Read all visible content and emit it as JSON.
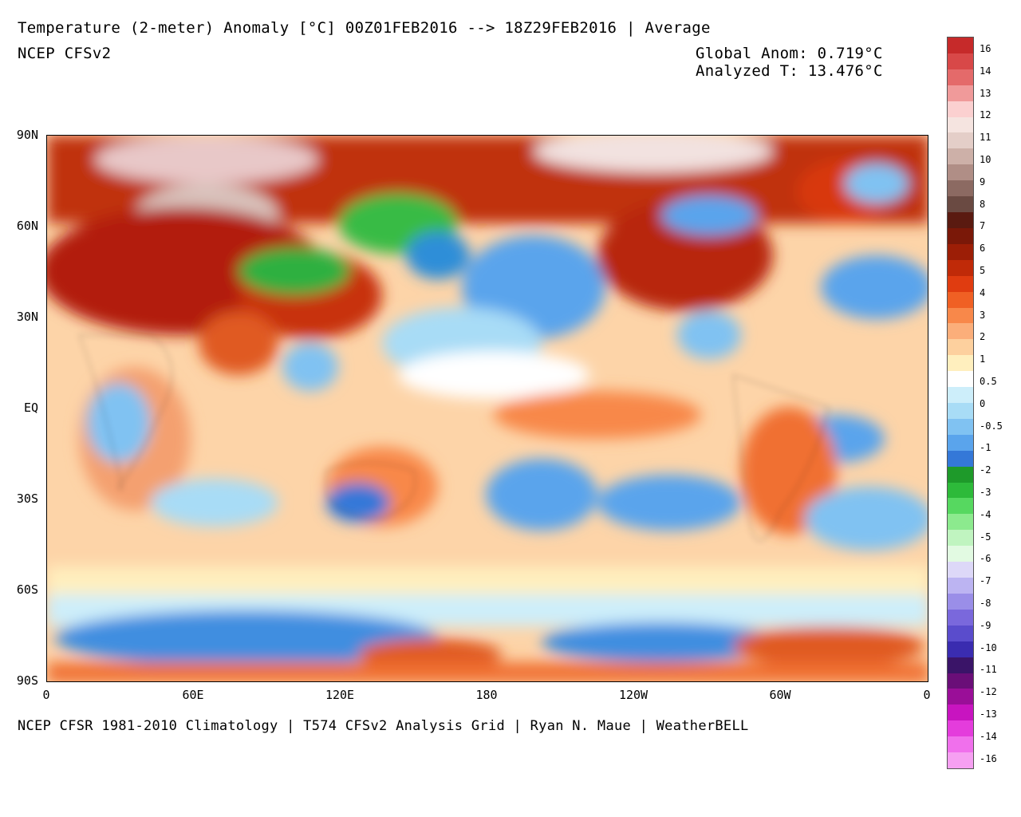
{
  "header": {
    "title": "Temperature (2-meter) Anomaly  [°C] 00Z01FEB2016 --> 18Z29FEB2016 | Average",
    "model": "NCEP CFSv2",
    "global_anom": "Global Anom: 0.719°C",
    "analyzed_t": "Analyzed T: 13.476°C"
  },
  "footer": "NCEP CFSR 1981-2010 Climatology | T574 CFSv2 Analysis Grid | Ryan N. Maue | WeatherBELL",
  "map": {
    "lat_labels": [
      "90N",
      "60N",
      "30N",
      "EQ",
      "30S",
      "60S",
      "90S"
    ],
    "lon_labels": [
      "0",
      "60E",
      "120E",
      "180",
      "120W",
      "60W",
      "0"
    ]
  },
  "colorbar": {
    "labels": [
      "16",
      "14",
      "13",
      "12",
      "11",
      "10",
      "9",
      "8",
      "7",
      "6",
      "5",
      "4",
      "3",
      "2",
      "1",
      "0.5",
      "0",
      "-0.5",
      "-1",
      "-2",
      "-3",
      "-4",
      "-5",
      "-6",
      "-7",
      "-8",
      "-9",
      "-10",
      "-11",
      "-12",
      "-13",
      "-14",
      "-16"
    ],
    "colors": [
      "#c62a2a",
      "#d84848",
      "#e46a6a",
      "#f09a9a",
      "#fbd0d0",
      "#f5e4e0",
      "#e4cec8",
      "#cdb0a8",
      "#b08e86",
      "#8c6a62",
      "#6a4a42",
      "#5a1a10",
      "#7a1808",
      "#9c1e06",
      "#c02a08",
      "#e03c10",
      "#f06024",
      "#f8884a",
      "#fbae7a",
      "#fdd09e",
      "#ffefbe",
      "#ffffff",
      "#cdeefa",
      "#a8dcf6",
      "#80c2f2",
      "#5aa4ec",
      "#3478d8",
      "#1e9a2a",
      "#2dba3a",
      "#56d860",
      "#8cea8e",
      "#c0f4c0",
      "#e2fae2",
      "#ddd8f8",
      "#bcb4f2",
      "#9a8ee8",
      "#7a68dc",
      "#5a4ccc",
      "#3a2cb0",
      "#3a1468",
      "#6a0e78",
      "#9a0e98",
      "#c814c0",
      "#e43cdc",
      "#f070ec",
      "#f6a0f2"
    ]
  }
}
